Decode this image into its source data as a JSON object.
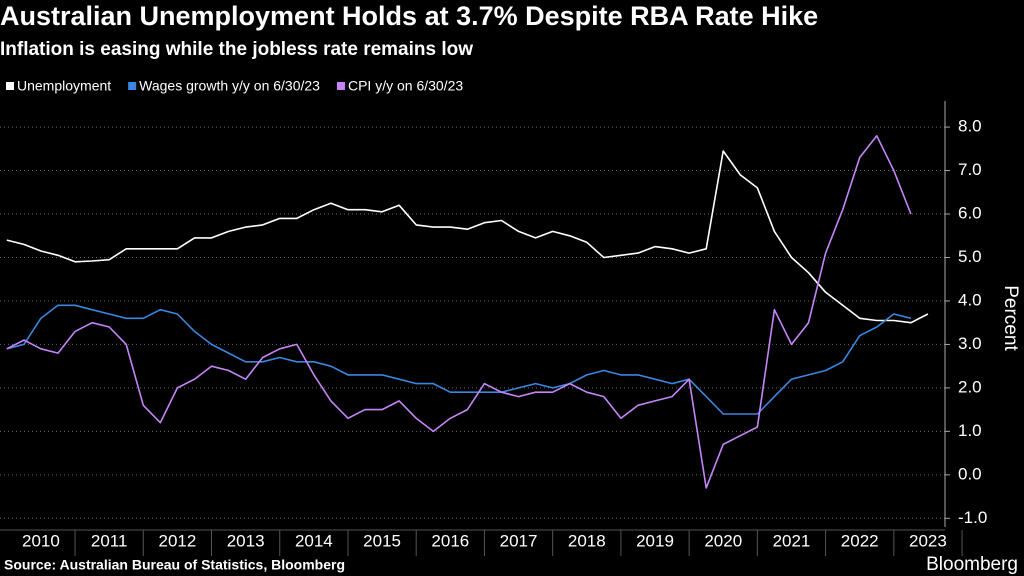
{
  "chart_data": {
    "type": "line",
    "title": "Australian Unemployment Holds at 3.7% Despite RBA Rate Hike",
    "subtitle": "Inflation is easing while the jobless rate remains low",
    "y_label": "Percent",
    "source": "Source: Australian Bureau of Statistics, Bloomberg",
    "brand": "Bloomberg",
    "grid": true,
    "xlim": [
      2009.9,
      2023.75
    ],
    "ylim": [
      -1.2,
      8.6
    ],
    "xticks": [
      {
        "value": 2010.5,
        "label": "2010"
      },
      {
        "value": 2011.5,
        "label": "2011"
      },
      {
        "value": 2012.5,
        "label": "2012"
      },
      {
        "value": 2013.5,
        "label": "2013"
      },
      {
        "value": 2014.5,
        "label": "2014"
      },
      {
        "value": 2015.5,
        "label": "2015"
      },
      {
        "value": 2016.5,
        "label": "2016"
      },
      {
        "value": 2017.5,
        "label": "2017"
      },
      {
        "value": 2018.5,
        "label": "2018"
      },
      {
        "value": 2019.5,
        "label": "2019"
      },
      {
        "value": 2020.5,
        "label": "2020"
      },
      {
        "value": 2021.5,
        "label": "2021"
      },
      {
        "value": 2022.5,
        "label": "2022"
      },
      {
        "value": 2023.5,
        "label": "2023"
      }
    ],
    "yticks": [
      {
        "value": -1,
        "label": "-1.0"
      },
      {
        "value": 0,
        "label": "0.0"
      },
      {
        "value": 1,
        "label": "1.0"
      },
      {
        "value": 2,
        "label": "2.0"
      },
      {
        "value": 3,
        "label": "3.0"
      },
      {
        "value": 4,
        "label": "4.0"
      },
      {
        "value": 5,
        "label": "5.0"
      },
      {
        "value": 6,
        "label": "6.0"
      },
      {
        "value": 7,
        "label": "7.0"
      },
      {
        "value": 8,
        "label": "8.0"
      }
    ],
    "series": [
      {
        "name": "Unemployment",
        "color": "#ffffff",
        "x": [
          2010,
          2010.25,
          2010.5,
          2010.75,
          2011,
          2011.25,
          2011.5,
          2011.75,
          2012,
          2012.25,
          2012.5,
          2012.75,
          2013,
          2013.25,
          2013.5,
          2013.75,
          2014,
          2014.25,
          2014.5,
          2014.75,
          2015,
          2015.25,
          2015.5,
          2015.75,
          2016,
          2016.25,
          2016.5,
          2016.75,
          2017,
          2017.25,
          2017.5,
          2017.75,
          2018,
          2018.25,
          2018.5,
          2018.75,
          2019,
          2019.25,
          2019.5,
          2019.75,
          2020,
          2020.25,
          2020.5,
          2020.75,
          2021,
          2021.25,
          2021.5,
          2021.75,
          2022,
          2022.25,
          2022.5,
          2022.75,
          2023,
          2023.25,
          2023.5
        ],
        "values": [
          5.4,
          5.3,
          5.15,
          5.05,
          4.9,
          4.92,
          4.95,
          5.2,
          5.2,
          5.2,
          5.2,
          5.45,
          5.45,
          5.6,
          5.7,
          5.75,
          5.9,
          5.9,
          6.1,
          6.25,
          6.1,
          6.1,
          6.05,
          6.2,
          5.75,
          5.7,
          5.7,
          5.65,
          5.8,
          5.85,
          5.6,
          5.45,
          5.6,
          5.5,
          5.35,
          5.0,
          5.05,
          5.1,
          5.25,
          5.2,
          5.1,
          5.2,
          7.45,
          6.9,
          6.6,
          5.6,
          5.0,
          4.65,
          4.2,
          3.9,
          3.6,
          3.55,
          3.55,
          3.5,
          3.7
        ]
      },
      {
        "name": "Wages growth y/y on 6/30/23",
        "color": "#3b86e0",
        "x": [
          2010,
          2010.25,
          2010.5,
          2010.75,
          2011,
          2011.25,
          2011.5,
          2011.75,
          2012,
          2012.25,
          2012.5,
          2012.75,
          2013,
          2013.25,
          2013.5,
          2013.75,
          2014,
          2014.25,
          2014.5,
          2014.75,
          2015,
          2015.25,
          2015.5,
          2015.75,
          2016,
          2016.25,
          2016.5,
          2016.75,
          2017,
          2017.25,
          2017.5,
          2017.75,
          2018,
          2018.25,
          2018.5,
          2018.75,
          2019,
          2019.25,
          2019.5,
          2019.75,
          2020,
          2020.25,
          2020.5,
          2020.75,
          2021,
          2021.25,
          2021.5,
          2021.75,
          2022,
          2022.25,
          2022.5,
          2022.75,
          2023,
          2023.25
        ],
        "values": [
          2.9,
          3.0,
          3.6,
          3.9,
          3.9,
          3.8,
          3.7,
          3.6,
          3.6,
          3.8,
          3.7,
          3.3,
          3.0,
          2.8,
          2.6,
          2.6,
          2.7,
          2.6,
          2.6,
          2.5,
          2.3,
          2.3,
          2.3,
          2.2,
          2.1,
          2.1,
          1.9,
          1.9,
          1.9,
          1.9,
          2.0,
          2.1,
          2.0,
          2.1,
          2.3,
          2.4,
          2.3,
          2.3,
          2.2,
          2.1,
          2.2,
          1.8,
          1.4,
          1.4,
          1.4,
          1.8,
          2.2,
          2.3,
          2.4,
          2.6,
          3.2,
          3.4,
          3.7,
          3.6
        ]
      },
      {
        "name": "CPI y/y on 6/30/23",
        "color": "#c585f7",
        "x": [
          2010,
          2010.25,
          2010.5,
          2010.75,
          2011,
          2011.25,
          2011.5,
          2011.75,
          2012,
          2012.25,
          2012.5,
          2012.75,
          2013,
          2013.25,
          2013.5,
          2013.75,
          2014,
          2014.25,
          2014.5,
          2014.75,
          2015,
          2015.25,
          2015.5,
          2015.75,
          2016,
          2016.25,
          2016.5,
          2016.75,
          2017,
          2017.25,
          2017.5,
          2017.75,
          2018,
          2018.25,
          2018.5,
          2018.75,
          2019,
          2019.25,
          2019.5,
          2019.75,
          2020,
          2020.25,
          2020.5,
          2020.75,
          2021,
          2021.25,
          2021.5,
          2021.75,
          2022,
          2022.25,
          2022.5,
          2022.75,
          2023,
          2023.25
        ],
        "values": [
          2.9,
          3.1,
          2.9,
          2.8,
          3.3,
          3.5,
          3.4,
          3.0,
          1.6,
          1.2,
          2.0,
          2.2,
          2.5,
          2.4,
          2.2,
          2.7,
          2.9,
          3.0,
          2.3,
          1.7,
          1.3,
          1.5,
          1.5,
          1.7,
          1.3,
          1.0,
          1.3,
          1.5,
          2.1,
          1.9,
          1.8,
          1.9,
          1.9,
          2.1,
          1.9,
          1.8,
          1.3,
          1.6,
          1.7,
          1.8,
          2.2,
          -0.3,
          0.7,
          0.9,
          1.1,
          3.8,
          3.0,
          3.5,
          5.1,
          6.1,
          7.3,
          7.8,
          7.0,
          6.0
        ]
      }
    ]
  }
}
